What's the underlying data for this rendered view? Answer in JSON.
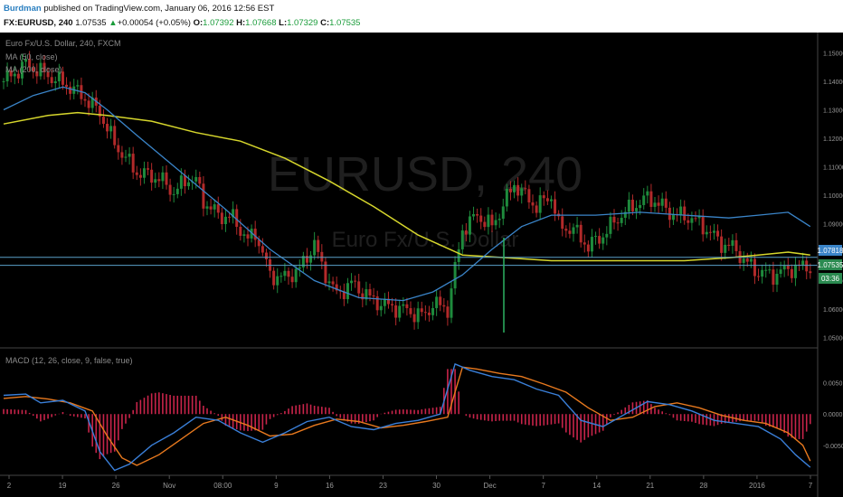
{
  "header": {
    "author": "Burdman",
    "published": "published on TradingView.com, January 06, 2016 12:56 EST",
    "symbol": "FX:EURUSD, 240",
    "last": "1.07535",
    "change_arrow": "▲",
    "change": "+0.00054 (+0.05%)",
    "o_label": "O:",
    "o": "1.07392",
    "h_label": "H:",
    "h": "1.07668",
    "l_label": "L:",
    "l": "1.07329",
    "c_label": "C:",
    "c": "1.07535"
  },
  "price_pane": {
    "legend": [
      "Euro Fx/U.S. Dollar, 240, FXCM",
      "MA (50, close)",
      "MA (200, close)"
    ],
    "watermark_main": "EURUSD, 240",
    "watermark_sub": "Euro Fx/U.S. Dollar",
    "price_labels": [
      "1.07818",
      "1.07535",
      "03:36"
    ]
  },
  "macd_pane": {
    "legend": "MACD (12, 26, close, 9, false, true)"
  },
  "colors": {
    "background": "#000000",
    "candle_up": "#1e8a3c",
    "candle_down": "#b22a2a",
    "ma50": "#3a84c8",
    "ma200": "#d6d62c",
    "macd_line": "#3a7fd8",
    "signal_line": "#e8791e",
    "histogram": "#c8244a",
    "axis_text": "#9a9a9a"
  },
  "chart_data": [
    {
      "type": "line",
      "subtype": "candlestick",
      "title": "Euro Fx/U.S. Dollar, 240, FXCM",
      "ylim": [
        1.047,
        1.1565
      ],
      "yticks": [
        "1.15000",
        "1.14000",
        "1.13000",
        "1.12000",
        "1.11000",
        "1.10000",
        "1.09000",
        "1.08000",
        "1.07000",
        "1.06000",
        "1.05000"
      ],
      "x_tick_labels": [
        "2",
        "19",
        "26",
        "Nov",
        "08:00",
        "9",
        "16",
        "23",
        "30",
        "Dec",
        "7",
        "14",
        "21",
        "28",
        "2016",
        "7"
      ],
      "series": [
        {
          "name": "Euro Fx/U.S. Dollar",
          "x": [
            0,
            3,
            6,
            9,
            11,
            13,
            15,
            18,
            21,
            23,
            25,
            26,
            27,
            29,
            31,
            33,
            34,
            36,
            38,
            40,
            42,
            43,
            44,
            45,
            47,
            49,
            50,
            52,
            54,
            56,
            57,
            58,
            60,
            62,
            64,
            66,
            67,
            68,
            69,
            70,
            72,
            74,
            75,
            77,
            79,
            81,
            83,
            85,
            87,
            88,
            90,
            91,
            93,
            95,
            97,
            99,
            100,
            102,
            104,
            106,
            108,
            109
          ],
          "values": [
            1.14,
            1.146,
            1.142,
            1.138,
            1.134,
            1.129,
            1.118,
            1.108,
            1.106,
            1.101,
            1.106,
            1.105,
            1.098,
            1.093,
            1.092,
            1.084,
            1.087,
            1.072,
            1.071,
            1.074,
            1.083,
            1.075,
            1.07,
            1.065,
            1.069,
            1.065,
            1.063,
            1.061,
            1.06,
            1.058,
            1.058,
            1.062,
            1.06,
            1.088,
            1.093,
            1.089,
            1.094,
            1.099,
            1.104,
            1.101,
            1.096,
            1.1,
            1.089,
            1.088,
            1.082,
            1.086,
            1.092,
            1.096,
            1.099,
            1.098,
            1.094,
            1.093,
            1.092,
            1.088,
            1.083,
            1.081,
            1.077,
            1.073,
            1.072,
            1.074,
            1.075,
            1.075
          ]
        },
        {
          "name": "MA (50, close)",
          "x": [
            0,
            4,
            8,
            11,
            14,
            18,
            24,
            30,
            36,
            42,
            48,
            54,
            58,
            62,
            66,
            70,
            74,
            80,
            86,
            92,
            98,
            102,
            106,
            109
          ],
          "values": [
            1.13,
            1.135,
            1.138,
            1.136,
            1.13,
            1.121,
            1.108,
            1.095,
            1.081,
            1.07,
            1.064,
            1.063,
            1.066,
            1.072,
            1.081,
            1.089,
            1.093,
            1.093,
            1.094,
            1.093,
            1.092,
            1.093,
            1.094,
            1.089
          ]
        },
        {
          "name": "MA (200, close)",
          "x": [
            0,
            6,
            10,
            14,
            20,
            26,
            32,
            38,
            44,
            50,
            56,
            62,
            68,
            74,
            80,
            86,
            92,
            98,
            102,
            106,
            109
          ],
          "values": [
            1.125,
            1.128,
            1.129,
            1.128,
            1.126,
            1.122,
            1.119,
            1.113,
            1.105,
            1.096,
            1.086,
            1.079,
            1.078,
            1.077,
            1.077,
            1.077,
            1.077,
            1.078,
            1.079,
            1.08,
            1.079
          ]
        }
      ]
    },
    {
      "type": "line",
      "title": "MACD (12, 26, close, 9, false, true)",
      "ylim": [
        -0.0095,
        0.01
      ],
      "yticks": [
        "0.0050",
        "0.0000",
        "-0.0050"
      ],
      "series": [
        {
          "name": "MACD",
          "x": [
            0,
            3,
            5,
            8,
            11,
            13,
            15,
            17,
            20,
            23,
            26,
            29,
            32,
            35,
            38,
            41,
            44,
            47,
            50,
            53,
            56,
            59,
            61,
            63,
            66,
            69,
            72,
            75,
            78,
            81,
            84,
            87,
            90,
            93,
            96,
            99,
            102,
            105,
            107,
            109
          ],
          "values": [
            0.003,
            0.0032,
            0.0018,
            0.0022,
            0.0005,
            -0.006,
            -0.009,
            -0.008,
            -0.005,
            -0.003,
            -0.0005,
            -0.001,
            -0.003,
            -0.0045,
            -0.003,
            -0.0012,
            -0.0005,
            -0.002,
            -0.0025,
            -0.0015,
            -0.001,
            0.0,
            0.008,
            0.007,
            0.006,
            0.0055,
            0.004,
            0.003,
            -0.001,
            -0.002,
            0.0,
            0.002,
            0.0015,
            0.0005,
            -0.001,
            -0.0015,
            -0.002,
            -0.004,
            -0.0065,
            -0.0085
          ]
        },
        {
          "name": "Signal",
          "x": [
            0,
            3,
            6,
            9,
            12,
            14,
            16,
            18,
            21,
            24,
            27,
            30,
            33,
            36,
            39,
            42,
            45,
            48,
            51,
            54,
            57,
            60,
            62,
            64,
            67,
            70,
            73,
            76,
            79,
            82,
            85,
            88,
            91,
            94,
            97,
            100,
            103,
            106,
            108,
            109
          ],
          "values": [
            0.0025,
            0.0028,
            0.0024,
            0.0018,
            0.0005,
            -0.0035,
            -0.007,
            -0.0082,
            -0.0065,
            -0.004,
            -0.0015,
            -0.0005,
            -0.0018,
            -0.0035,
            -0.0032,
            -0.0018,
            -0.0008,
            -0.0012,
            -0.0022,
            -0.0018,
            -0.0012,
            -0.0005,
            0.0075,
            0.0072,
            0.0065,
            0.006,
            0.0048,
            0.0035,
            0.001,
            -0.001,
            -0.0005,
            0.0012,
            0.0018,
            0.001,
            -0.0002,
            -0.001,
            -0.0015,
            -0.003,
            -0.005,
            -0.0075
          ]
        }
      ]
    }
  ]
}
